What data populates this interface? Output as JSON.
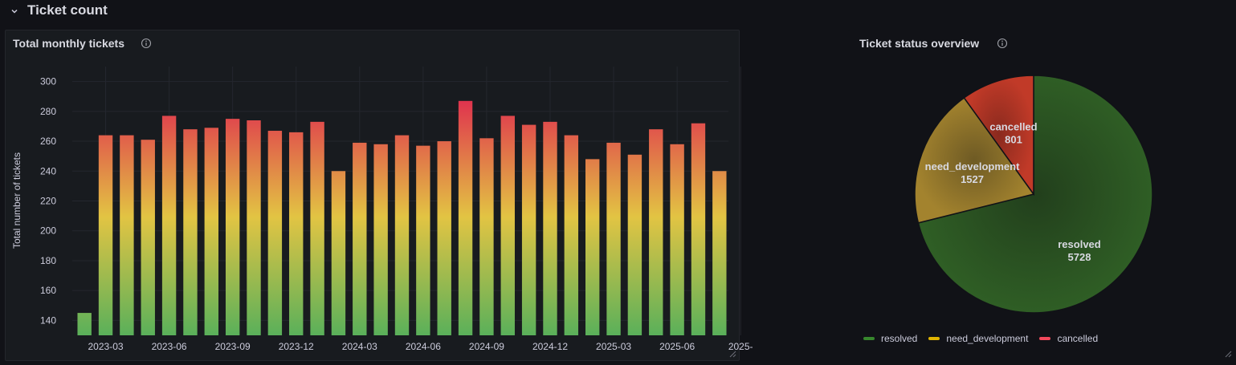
{
  "row": {
    "title": "Ticket count",
    "chevron_icon": "chevron-down-icon"
  },
  "bar_panel": {
    "title": "Total monthly tickets",
    "info_icon": "info-circle-icon"
  },
  "pie_panel": {
    "title": "Ticket status overview",
    "info_icon": "info-circle-icon"
  },
  "colors": {
    "background": "#111217",
    "panel": "#181b1f",
    "grid": "#24272e",
    "gradient_low": "#5ab05a",
    "gradient_mid": "#e2c443",
    "gradient_high": "#e0304e",
    "resolved": "#2f5a24",
    "need_development": "#9a7a2a",
    "cancelled": "#b73224"
  },
  "chart_data": [
    {
      "type": "bar",
      "ylabel": "Total number of tickets",
      "ylim": [
        130,
        310
      ],
      "yticks": [
        140,
        160,
        180,
        200,
        220,
        240,
        260,
        280,
        300
      ],
      "xtick_labels": [
        "2023-03",
        "2023-06",
        "2023-09",
        "2023-12",
        "2024-03",
        "2024-06",
        "2024-09",
        "2024-12",
        "2025-03",
        "2025-06",
        "2025-"
      ],
      "values": [
        145,
        264,
        264,
        261,
        277,
        268,
        269,
        275,
        274,
        267,
        266,
        273,
        240,
        259,
        258,
        264,
        257,
        260,
        287,
        262,
        277,
        271,
        273,
        264,
        248,
        259,
        251,
        268,
        258,
        272,
        240
      ],
      "grid": true
    },
    {
      "type": "pie",
      "labels": [
        "resolved",
        "need_development",
        "cancelled"
      ],
      "values": [
        5728,
        1527,
        801
      ],
      "legend_position": "bottom"
    }
  ]
}
